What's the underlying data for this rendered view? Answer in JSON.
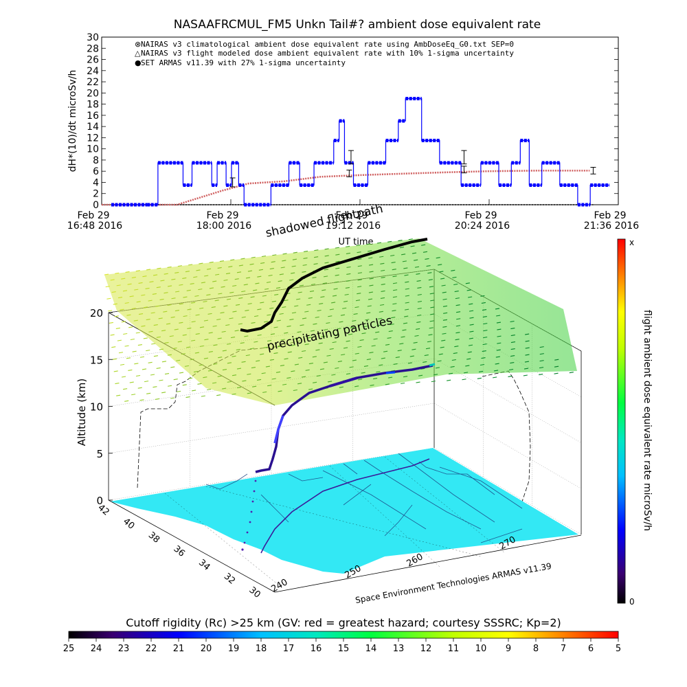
{
  "top_chart": {
    "title": "NASAAFRCMUL_FM5 Unkn Tail#? ambient dose equivalent rate",
    "ylabel": "dH*(10)/dt microSv/h",
    "xlabel": "UT time",
    "legend": [
      {
        "marker": "⊗",
        "label": "NAIRAS v3 climatological ambient dose equivalent rate using AmbDoseEq_G0.txt SEP=0"
      },
      {
        "marker": "△",
        "label": "NAIRAS v3 flight modeled dose ambient equivalent rate with 10% 1-sigma uncertainty"
      },
      {
        "marker": "●",
        "label": "SET ARMAS v11.39 with 27% 1-sigma uncertainty"
      }
    ],
    "xticks": [
      {
        "date": "Feb 29",
        "time": "16:48 2016"
      },
      {
        "date": "Feb 29",
        "time": "18:00 2016"
      },
      {
        "date": "Feb 29",
        "time": "19:12 2016"
      },
      {
        "date": "Feb 29",
        "time": "20:24 2016"
      },
      {
        "date": "Feb 29",
        "time": "21:36 2016"
      }
    ],
    "yticks": [
      "0",
      "2",
      "4",
      "6",
      "8",
      "10",
      "12",
      "14",
      "16",
      "18",
      "20",
      "22",
      "24",
      "26",
      "28",
      "30"
    ]
  },
  "chart_data": {
    "type": "line",
    "title": "NASAAFRCMUL_FM5 Unkn Tail#? ambient dose equivalent rate",
    "xlabel": "UT time",
    "ylabel": "dH*(10)/dt microSv/h",
    "xlim": [
      "16:48",
      "21:36"
    ],
    "ylim": [
      0,
      30
    ],
    "legend_position": "top-left",
    "series": [
      {
        "name": "SET ARMAS v11.39 with 27% 1-sigma uncertainty",
        "color": "#0000ff",
        "x": [
          "16:48",
          "17:08",
          "17:14",
          "17:28",
          "17:33",
          "17:44",
          "17:47",
          "17:52",
          "17:55",
          "17:59",
          "18:02",
          "18:17",
          "18:27",
          "18:33",
          "18:41",
          "18:52",
          "18:55",
          "18:58",
          "19:03",
          "19:11",
          "19:21",
          "19:28",
          "19:32",
          "19:41",
          "19:51",
          "20:03",
          "20:14",
          "20:24",
          "20:31",
          "20:36",
          "20:41",
          "20:48",
          "20:58",
          "21:08",
          "21:15"
        ],
        "y": [
          0,
          0,
          7.5,
          3.5,
          7.5,
          3.5,
          7.5,
          3.5,
          7.5,
          3.5,
          0,
          3.5,
          7.5,
          3.5,
          7.5,
          11.5,
          15,
          7.5,
          3.5,
          7.5,
          11.5,
          15,
          19,
          11.5,
          7.5,
          3.5,
          7.5,
          3.5,
          7.5,
          11.5,
          3.5,
          7.5,
          3.5,
          0,
          3.5
        ]
      },
      {
        "name": "NAIRAS v3 climatological ambient dose equivalent rate using AmbDoseEq_G0.txt SEP=0",
        "color": "#d06060",
        "x": [
          "16:48",
          "17:30",
          "17:55",
          "18:10",
          "18:30",
          "18:50",
          "19:12",
          "19:40",
          "20:00",
          "20:24",
          "20:50",
          "21:20"
        ],
        "y": [
          0,
          0,
          2.5,
          3.8,
          4.2,
          5,
          5.3,
          5.6,
          5.8,
          6,
          6.1,
          6.1
        ]
      },
      {
        "name": "NAIRAS v3 flight modeled dose ambient equivalent rate with 10% 1-sigma uncertainty",
        "color": "#000000",
        "x": [
          "16:48",
          "21:22"
        ],
        "y": [
          0,
          0
        ]
      }
    ],
    "error_bars": [
      {
        "x": "18:01",
        "y": 4,
        "err": 0.8
      },
      {
        "x": "19:07",
        "y": 8.5,
        "err": 1.2
      },
      {
        "x": "19:06",
        "y": 5.6,
        "err": 0.6
      },
      {
        "x": "20:10",
        "y": 8.5,
        "err": 1.2
      },
      {
        "x": "20:10",
        "y": 6.3,
        "err": 0.6
      },
      {
        "x": "21:22",
        "y": 6.1,
        "err": 0.6
      }
    ]
  },
  "scene3d": {
    "ylabel": "Altitude (km)",
    "zticks": [
      "0",
      "5",
      "10",
      "15",
      "20"
    ],
    "lat_ticks": [
      "42",
      "40",
      "38",
      "36",
      "34",
      "32",
      "30"
    ],
    "lon_ticks": [
      "240",
      "250",
      "260",
      "270"
    ],
    "lon_caption": "Space Environment Technologies ARMAS v11.39",
    "label_shadowed": "shadowed flightpath",
    "label_particles": "precipitating particles"
  },
  "colorbar_right": {
    "label": "flight ambient dose equivalent rate microSv/h",
    "top": "x",
    "bottom": "0"
  },
  "colorbar_bottom": {
    "title": "Cutoff rigidity (Rc) >25 km (GV: red = greatest hazard; courtesy SSSRC; Kp=2)",
    "ticks": [
      "25",
      "24",
      "23",
      "22",
      "21",
      "20",
      "19",
      "18",
      "17",
      "16",
      "15",
      "14",
      "13",
      "12",
      "11",
      "10",
      "9",
      "8",
      "7",
      "6",
      "5"
    ]
  },
  "colors": {
    "ground": "#33e8f4",
    "armas": "#0000ff",
    "nairas_clim": "#d06060"
  }
}
